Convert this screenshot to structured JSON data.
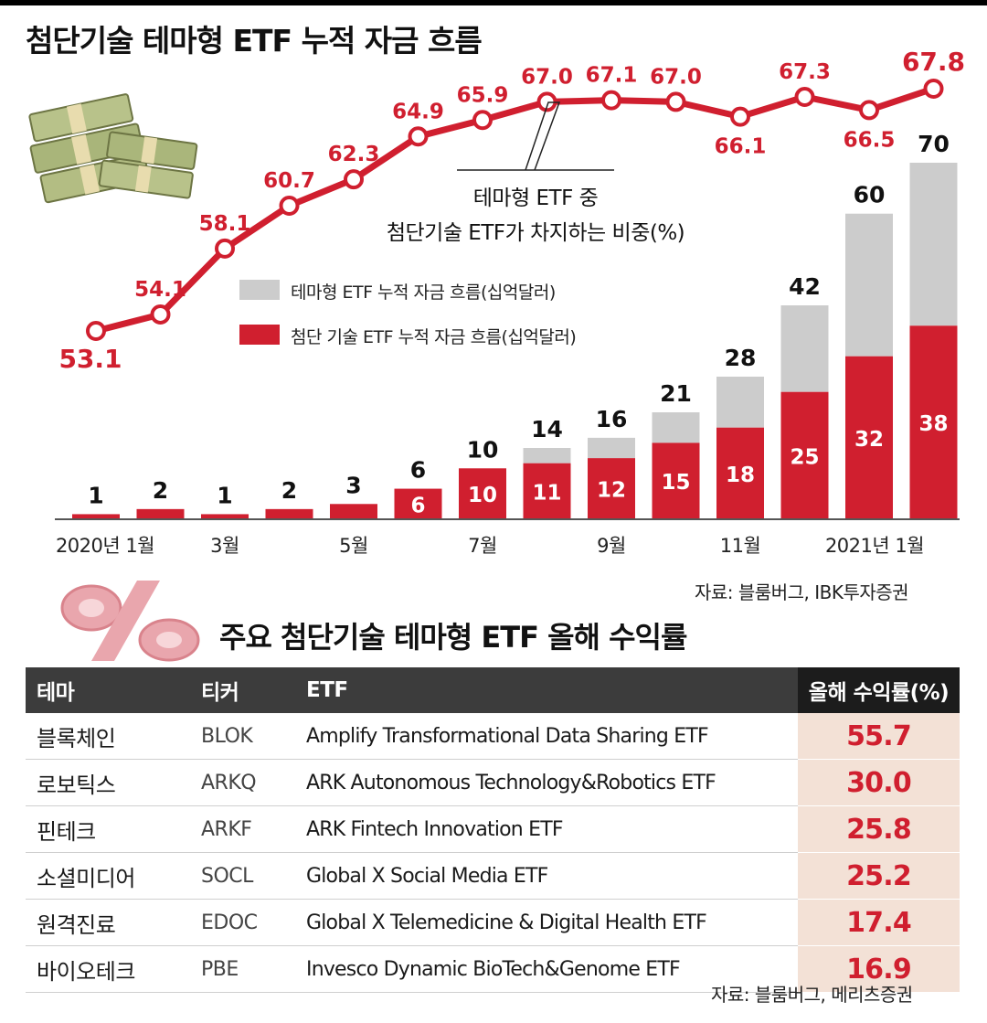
{
  "title": "첨단기술 테마형 ETF 누적 자금 흐름",
  "colors": {
    "red": "#d01f2f",
    "gray": "#cccccc",
    "return_bg": "#f3e1d6",
    "header_bg": "#3c3c3c"
  },
  "chart_data": {
    "type": "bar+line",
    "title": "첨단기술 테마형 ETF 누적 자금 흐름",
    "tick_labels": [
      "2020년 1월",
      "3월",
      "5월",
      "7월",
      "9월",
      "11월",
      "2021년 1월"
    ],
    "tick_indices": [
      0,
      2,
      4,
      6,
      8,
      10,
      12
    ],
    "series": [
      {
        "name": "테마형 ETF 누적 자금 흐름(십억달러)",
        "kind": "bar",
        "values": [
          1,
          2,
          1,
          2,
          3,
          6,
          10,
          14,
          16,
          21,
          28,
          42,
          60,
          70
        ]
      },
      {
        "name": "첨단 기술 ETF 누적 자금 흐름(십억달러)",
        "kind": "bar",
        "values": [
          1,
          2,
          1,
          2,
          3,
          6,
          10,
          11,
          12,
          15,
          18,
          25,
          32,
          38
        ]
      },
      {
        "name": "테마형 ETF 중 첨단기술 ETF가 차지하는 비중(%)",
        "kind": "line",
        "values": [
          53.1,
          54.1,
          58.1,
          60.7,
          62.3,
          64.9,
          65.9,
          67.0,
          67.1,
          67.0,
          66.1,
          67.3,
          66.5,
          67.8
        ]
      }
    ],
    "legend": [
      "테마형 ETF 누적 자금 흐름(십억달러)",
      "첨단 기술 ETF 누적 자금 흐름(십억달러)"
    ],
    "annotation": {
      "line1": "테마형 ETF 중",
      "line2": "첨단기술 ETF가 차지하는 비중(%)"
    },
    "bar_ylim": [
      0,
      70
    ],
    "line_ylim": [
      53.1,
      67.8
    ]
  },
  "chart_source": "자료: 블룸버그, IBK투자증권",
  "table": {
    "title": "주요 첨단기술 테마형 ETF 올해 수익률",
    "headers": [
      "테마",
      "티커",
      "ETF",
      "올해 수익률(%)"
    ],
    "rows": [
      {
        "theme": "블록체인",
        "ticker": "BLOK",
        "etf": "Amplify Transformational Data Sharing ETF",
        "ret": "55.7"
      },
      {
        "theme": "로보틱스",
        "ticker": "ARKQ",
        "etf": "ARK Autonomous Technology&Robotics ETF",
        "ret": "30.0"
      },
      {
        "theme": "핀테크",
        "ticker": "ARKF",
        "etf": "ARK Fintech Innovation ETF",
        "ret": "25.8"
      },
      {
        "theme": "소셜미디어",
        "ticker": "SOCL",
        "etf": "Global X Social Media ETF",
        "ret": "25.2"
      },
      {
        "theme": "원격진료",
        "ticker": "EDOC",
        "etf": "Global X Telemedicine & Digital Health ETF",
        "ret": "17.4"
      },
      {
        "theme": "바이오테크",
        "ticker": "PBE",
        "etf": "Invesco Dynamic BioTech&Genome ETF",
        "ret": "16.9"
      }
    ]
  },
  "table_source": "자료: 블룸버그, 메리츠증권"
}
